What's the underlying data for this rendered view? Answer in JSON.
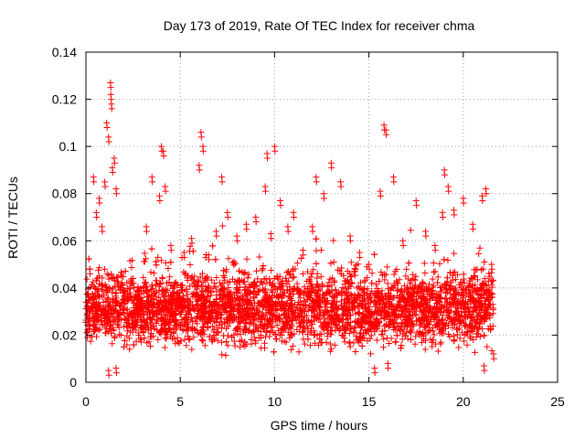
{
  "chart_data": {
    "type": "scatter",
    "title": "Day 173 of 2019, Rate Of TEC Index for receiver chma",
    "xlabel": "GPS time / hours",
    "ylabel": "ROTI / TECUs",
    "xlim": [
      0,
      25
    ],
    "ylim": [
      0,
      0.14
    ],
    "xticks": [
      0,
      5,
      10,
      15,
      20,
      25
    ],
    "xtick_labels": [
      "0",
      "5",
      "10",
      "15",
      "20",
      "25"
    ],
    "yticks": [
      0,
      0.02,
      0.04,
      0.06,
      0.08,
      0.1,
      0.12,
      0.14
    ],
    "ytick_labels": [
      "0",
      "0.02",
      "0.04",
      "0.06",
      "0.08",
      "0.1",
      "0.12",
      "0.14"
    ],
    "grid": true,
    "marker": "+",
    "color": "#ff0000",
    "series": [
      {
        "name": "ROTI",
        "x_range": [
          0.0,
          21.6
        ],
        "typical_y_range": [
          0.01,
          0.05
        ],
        "representative_points": [
          [
            0.05,
            0.021
          ],
          [
            0.2,
            0.048
          ],
          [
            0.4,
            0.087
          ],
          [
            0.55,
            0.072
          ],
          [
            0.7,
            0.078
          ],
          [
            0.85,
            0.066
          ],
          [
            1.0,
            0.085
          ],
          [
            1.1,
            0.11
          ],
          [
            1.2,
            0.104
          ],
          [
            1.3,
            0.127
          ],
          [
            1.32,
            0.122
          ],
          [
            1.35,
            0.118
          ],
          [
            1.4,
            0.091
          ],
          [
            1.5,
            0.095
          ],
          [
            1.6,
            0.082
          ],
          [
            1.2,
            0.005
          ],
          [
            1.6,
            0.006
          ],
          [
            2.0,
            0.031
          ],
          [
            2.5,
            0.044
          ],
          [
            3.2,
            0.066
          ],
          [
            3.5,
            0.087
          ],
          [
            3.9,
            0.079
          ],
          [
            4.0,
            0.1
          ],
          [
            4.1,
            0.098
          ],
          [
            4.2,
            0.083
          ],
          [
            4.5,
            0.058
          ],
          [
            5.2,
            0.055
          ],
          [
            5.6,
            0.061
          ],
          [
            6.0,
            0.092
          ],
          [
            6.1,
            0.106
          ],
          [
            6.2,
            0.1
          ],
          [
            6.5,
            0.054
          ],
          [
            6.9,
            0.064
          ],
          [
            7.2,
            0.087
          ],
          [
            7.5,
            0.072
          ],
          [
            8.0,
            0.062
          ],
          [
            8.5,
            0.067
          ],
          [
            9.0,
            0.07
          ],
          [
            9.5,
            0.083
          ],
          [
            9.6,
            0.097
          ],
          [
            9.8,
            0.063
          ],
          [
            10.0,
            0.1
          ],
          [
            10.3,
            0.077
          ],
          [
            10.7,
            0.066
          ],
          [
            11.0,
            0.072
          ],
          [
            11.5,
            0.056
          ],
          [
            12.0,
            0.066
          ],
          [
            12.2,
            0.087
          ],
          [
            12.6,
            0.08
          ],
          [
            13.0,
            0.093
          ],
          [
            13.5,
            0.085
          ],
          [
            14.0,
            0.062
          ],
          [
            14.5,
            0.055
          ],
          [
            15.0,
            0.05
          ],
          [
            15.6,
            0.081
          ],
          [
            15.8,
            0.109
          ],
          [
            15.9,
            0.107
          ],
          [
            16.3,
            0.087
          ],
          [
            16.8,
            0.06
          ],
          [
            17.5,
            0.077
          ],
          [
            18.0,
            0.064
          ],
          [
            18.5,
            0.058
          ],
          [
            18.9,
            0.072
          ],
          [
            19.0,
            0.09
          ],
          [
            19.2,
            0.083
          ],
          [
            19.5,
            0.073
          ],
          [
            20.0,
            0.078
          ],
          [
            20.5,
            0.067
          ],
          [
            21.0,
            0.079
          ],
          [
            21.2,
            0.082
          ],
          [
            21.5,
            0.05
          ],
          [
            21.6,
            0.012
          ],
          [
            15.3,
            0.006
          ],
          [
            16.0,
            0.008
          ],
          [
            21.1,
            0.007
          ]
        ]
      }
    ]
  }
}
